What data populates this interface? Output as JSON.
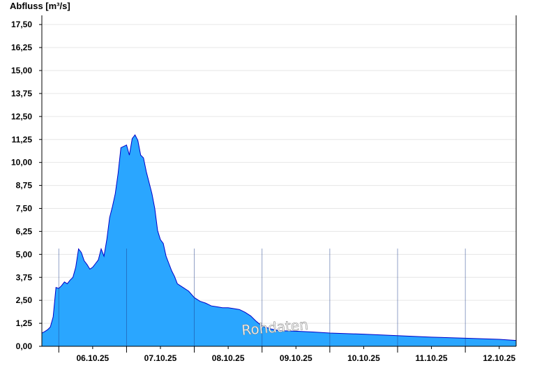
{
  "chart_data": {
    "type": "area",
    "ylabel": "Abfluss [m³/s]",
    "ylim": [
      0,
      18.0
    ],
    "yticks": [
      "0,00",
      "1,25",
      "2,50",
      "3,75",
      "5,00",
      "6,25",
      "7,50",
      "8,75",
      "10,00",
      "11,25",
      "12,50",
      "13,75",
      "15,00",
      "16,25",
      "17,50"
    ],
    "xlim": [
      "2025-10-05T18:00",
      "2025-10-12T18:00"
    ],
    "xticks": [
      {
        "date": "2025-10-06T12:00",
        "label": "06.10.25"
      },
      {
        "date": "2025-10-07T12:00",
        "label": "07.10.25"
      },
      {
        "date": "2025-10-08T12:00",
        "label": "08.10.25"
      },
      {
        "date": "2025-10-09T12:00",
        "label": "09.10.25"
      },
      {
        "date": "2025-10-10T12:00",
        "label": "10.10.25"
      },
      {
        "date": "2025-10-11T12:00",
        "label": "11.10.25"
      },
      {
        "date": "2025-10-12T12:00",
        "label": "12.10.25"
      }
    ],
    "day_lines": [
      "2025-10-06T00:00",
      "2025-10-07T00:00",
      "2025-10-08T00:00",
      "2025-10-09T00:00",
      "2025-10-10T00:00",
      "2025-10-11T00:00",
      "2025-10-12T00:00"
    ],
    "grid": true,
    "watermark": "Rohdaten",
    "colors": {
      "fill": "#2aa6ff",
      "line": "#0000c8",
      "grid": "#e6e6e6",
      "dayline": "#1a3a8a"
    },
    "series": [
      {
        "x": [
          "2025-10-05T18:00",
          "2025-10-05T19:00",
          "2025-10-05T20:00",
          "2025-10-05T21:00",
          "2025-10-05T22:00",
          "2025-10-05T23:00",
          "2025-10-06T00:00",
          "2025-10-06T01:00",
          "2025-10-06T02:00",
          "2025-10-06T03:00",
          "2025-10-06T04:00",
          "2025-10-06T05:00",
          "2025-10-06T06:00",
          "2025-10-06T07:00",
          "2025-10-06T08:00",
          "2025-10-06T09:00",
          "2025-10-06T10:00",
          "2025-10-06T11:00",
          "2025-10-06T12:00",
          "2025-10-06T13:00",
          "2025-10-06T14:00",
          "2025-10-06T15:00",
          "2025-10-06T16:00",
          "2025-10-06T17:00",
          "2025-10-06T18:00",
          "2025-10-06T19:00",
          "2025-10-06T20:00",
          "2025-10-06T21:00",
          "2025-10-06T22:00",
          "2025-10-07T00:00",
          "2025-10-07T01:00",
          "2025-10-07T02:00",
          "2025-10-07T03:00",
          "2025-10-07T04:00",
          "2025-10-07T05:00",
          "2025-10-07T06:00",
          "2025-10-07T07:00",
          "2025-10-07T08:00",
          "2025-10-07T09:00",
          "2025-10-07T10:00",
          "2025-10-07T11:00",
          "2025-10-07T12:00",
          "2025-10-07T13:00",
          "2025-10-07T14:00",
          "2025-10-07T15:00",
          "2025-10-07T16:00",
          "2025-10-07T17:00",
          "2025-10-07T18:00",
          "2025-10-07T20:00",
          "2025-10-07T22:00",
          "2025-10-08T00:00",
          "2025-10-08T02:00",
          "2025-10-08T04:00",
          "2025-10-08T06:00",
          "2025-10-08T08:00",
          "2025-10-08T10:00",
          "2025-10-08T12:00",
          "2025-10-08T14:00",
          "2025-10-08T16:00",
          "2025-10-08T18:00",
          "2025-10-08T20:00",
          "2025-10-08T22:00",
          "2025-10-09T00:00",
          "2025-10-09T03:00",
          "2025-10-09T06:00",
          "2025-10-09T12:00",
          "2025-10-09T18:00",
          "2025-10-10T00:00",
          "2025-10-10T12:00",
          "2025-10-11T00:00",
          "2025-10-11T12:00",
          "2025-10-12T00:00",
          "2025-10-12T12:00",
          "2025-10-12T18:00"
        ],
        "y": [
          0.72,
          0.8,
          0.9,
          1.05,
          1.6,
          3.2,
          3.15,
          3.3,
          3.5,
          3.4,
          3.6,
          3.75,
          4.3,
          5.3,
          5.1,
          4.65,
          4.45,
          4.2,
          4.3,
          4.5,
          4.7,
          5.3,
          4.9,
          5.8,
          7.0,
          7.6,
          8.3,
          9.4,
          10.8,
          10.95,
          10.4,
          11.3,
          11.5,
          11.2,
          10.4,
          10.25,
          9.5,
          8.9,
          8.3,
          7.5,
          6.3,
          5.8,
          5.6,
          4.9,
          4.5,
          4.1,
          3.8,
          3.4,
          3.2,
          3.0,
          2.65,
          2.45,
          2.35,
          2.2,
          2.15,
          2.1,
          2.1,
          2.05,
          2.0,
          1.85,
          1.65,
          1.35,
          1.1,
          0.95,
          0.85,
          0.82,
          0.78,
          0.72,
          0.66,
          0.58,
          0.5,
          0.44,
          0.38,
          0.32
        ]
      }
    ]
  }
}
